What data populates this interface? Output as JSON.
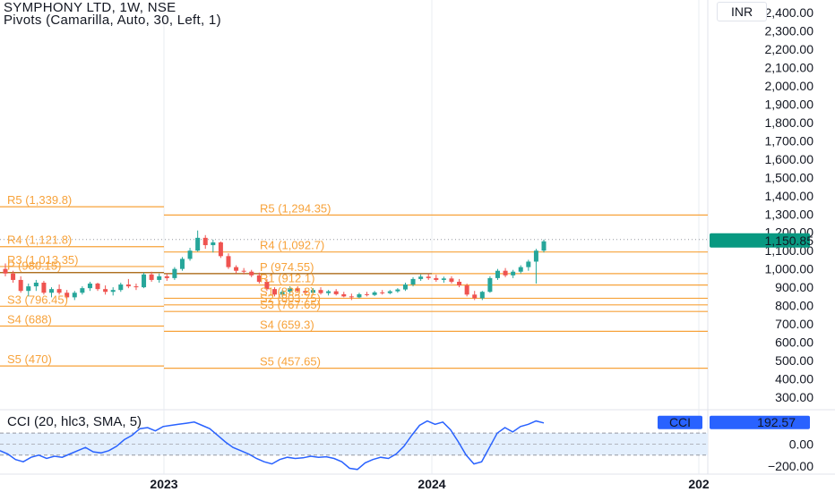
{
  "header": {
    "symbol": "SYMPHONY LTD, 1W, NSE",
    "indicator": "Pivots (Camarilla, Auto, 30, Left, 1)",
    "currency": "INR"
  },
  "colors": {
    "up": "#26a69a",
    "down": "#ef5350",
    "pivot": "#f7a23a",
    "pivot_dark": "#a35c00",
    "price_tag": "#089981",
    "cci_line": "#2962ff",
    "cci_band": "#e3effd",
    "cci_tag": "#2962ff",
    "grid": "#f0f3fa"
  },
  "chart_data": {
    "type": "candlestick",
    "title": "SYMPHONY LTD, 1W, NSE",
    "price_axis": {
      "ticks": [
        "2,400.00",
        "2,300.00",
        "2,200.00",
        "2,100.00",
        "2,000.00",
        "1,900.00",
        "1,800.00",
        "1,700.00",
        "1,600.00",
        "1,500.00",
        "1,400.00",
        "1,300.00",
        "1,200.00",
        "1,100.00",
        "1,000.00",
        "900.00",
        "800.00",
        "700.00",
        "600.00",
        "500.00",
        "400.00",
        "300.00"
      ],
      "ylim": [
        280,
        2430
      ]
    },
    "time_axis": {
      "ticks": [
        "2023",
        "2024",
        "202"
      ]
    },
    "last_price": {
      "value": 1150.85,
      "label": "1,150.85"
    },
    "candles": [
      {
        "o": 1000,
        "h": 1030,
        "l": 960,
        "c": 975
      },
      {
        "o": 975,
        "h": 990,
        "l": 925,
        "c": 940
      },
      {
        "o": 940,
        "h": 960,
        "l": 870,
        "c": 880
      },
      {
        "o": 880,
        "h": 920,
        "l": 850,
        "c": 905
      },
      {
        "o": 905,
        "h": 940,
        "l": 880,
        "c": 925
      },
      {
        "o": 925,
        "h": 935,
        "l": 860,
        "c": 870
      },
      {
        "o": 870,
        "h": 900,
        "l": 845,
        "c": 890
      },
      {
        "o": 890,
        "h": 915,
        "l": 860,
        "c": 870
      },
      {
        "o": 870,
        "h": 885,
        "l": 835,
        "c": 845
      },
      {
        "o": 845,
        "h": 880,
        "l": 830,
        "c": 870
      },
      {
        "o": 870,
        "h": 905,
        "l": 860,
        "c": 895
      },
      {
        "o": 895,
        "h": 930,
        "l": 880,
        "c": 920
      },
      {
        "o": 920,
        "h": 925,
        "l": 880,
        "c": 890
      },
      {
        "o": 890,
        "h": 910,
        "l": 860,
        "c": 875
      },
      {
        "o": 875,
        "h": 900,
        "l": 855,
        "c": 885
      },
      {
        "o": 885,
        "h": 925,
        "l": 875,
        "c": 915
      },
      {
        "o": 915,
        "h": 945,
        "l": 895,
        "c": 905
      },
      {
        "o": 905,
        "h": 920,
        "l": 885,
        "c": 900
      },
      {
        "o": 900,
        "h": 980,
        "l": 895,
        "c": 970
      },
      {
        "o": 970,
        "h": 985,
        "l": 930,
        "c": 940
      },
      {
        "o": 940,
        "h": 975,
        "l": 925,
        "c": 960
      },
      {
        "o": 960,
        "h": 975,
        "l": 935,
        "c": 950
      },
      {
        "o": 950,
        "h": 1010,
        "l": 940,
        "c": 1000
      },
      {
        "o": 1000,
        "h": 1065,
        "l": 990,
        "c": 1055
      },
      {
        "o": 1055,
        "h": 1115,
        "l": 1045,
        "c": 1100
      },
      {
        "o": 1100,
        "h": 1210,
        "l": 1095,
        "c": 1170
      },
      {
        "o": 1170,
        "h": 1185,
        "l": 1110,
        "c": 1130
      },
      {
        "o": 1130,
        "h": 1160,
        "l": 1090,
        "c": 1145
      },
      {
        "o": 1145,
        "h": 1150,
        "l": 1060,
        "c": 1070
      },
      {
        "o": 1070,
        "h": 1085,
        "l": 1000,
        "c": 1010
      },
      {
        "o": 1010,
        "h": 1020,
        "l": 975,
        "c": 990
      },
      {
        "o": 990,
        "h": 1005,
        "l": 970,
        "c": 985
      },
      {
        "o": 985,
        "h": 995,
        "l": 955,
        "c": 965
      },
      {
        "o": 965,
        "h": 980,
        "l": 920,
        "c": 930
      },
      {
        "o": 930,
        "h": 945,
        "l": 880,
        "c": 890
      },
      {
        "o": 890,
        "h": 900,
        "l": 850,
        "c": 860
      },
      {
        "o": 860,
        "h": 885,
        "l": 845,
        "c": 875
      },
      {
        "o": 875,
        "h": 905,
        "l": 865,
        "c": 895
      },
      {
        "o": 895,
        "h": 905,
        "l": 870,
        "c": 880
      },
      {
        "o": 880,
        "h": 895,
        "l": 860,
        "c": 870
      },
      {
        "o": 870,
        "h": 895,
        "l": 865,
        "c": 885
      },
      {
        "o": 885,
        "h": 900,
        "l": 860,
        "c": 868
      },
      {
        "o": 868,
        "h": 885,
        "l": 855,
        "c": 878
      },
      {
        "o": 878,
        "h": 890,
        "l": 855,
        "c": 862
      },
      {
        "o": 862,
        "h": 875,
        "l": 845,
        "c": 850
      },
      {
        "o": 850,
        "h": 865,
        "l": 830,
        "c": 845
      },
      {
        "o": 845,
        "h": 870,
        "l": 840,
        "c": 862
      },
      {
        "o": 862,
        "h": 875,
        "l": 850,
        "c": 858
      },
      {
        "o": 858,
        "h": 880,
        "l": 852,
        "c": 872
      },
      {
        "o": 872,
        "h": 885,
        "l": 860,
        "c": 868
      },
      {
        "o": 868,
        "h": 885,
        "l": 862,
        "c": 878
      },
      {
        "o": 878,
        "h": 895,
        "l": 870,
        "c": 888
      },
      {
        "o": 888,
        "h": 925,
        "l": 880,
        "c": 915
      },
      {
        "o": 915,
        "h": 955,
        "l": 905,
        "c": 945
      },
      {
        "o": 945,
        "h": 970,
        "l": 935,
        "c": 958
      },
      {
        "o": 958,
        "h": 975,
        "l": 940,
        "c": 950
      },
      {
        "o": 950,
        "h": 968,
        "l": 930,
        "c": 940
      },
      {
        "o": 940,
        "h": 958,
        "l": 925,
        "c": 948
      },
      {
        "o": 948,
        "h": 960,
        "l": 920,
        "c": 930
      },
      {
        "o": 930,
        "h": 945,
        "l": 900,
        "c": 910
      },
      {
        "o": 910,
        "h": 920,
        "l": 850,
        "c": 860
      },
      {
        "o": 860,
        "h": 880,
        "l": 830,
        "c": 840
      },
      {
        "o": 840,
        "h": 880,
        "l": 830,
        "c": 875
      },
      {
        "o": 875,
        "h": 960,
        "l": 870,
        "c": 950
      },
      {
        "o": 950,
        "h": 1000,
        "l": 940,
        "c": 990
      },
      {
        "o": 990,
        "h": 1005,
        "l": 955,
        "c": 965
      },
      {
        "o": 965,
        "h": 995,
        "l": 950,
        "c": 985
      },
      {
        "o": 985,
        "h": 1020,
        "l": 975,
        "c": 1010
      },
      {
        "o": 1010,
        "h": 1050,
        "l": 990,
        "c": 1040
      },
      {
        "o": 1040,
        "h": 1110,
        "l": 920,
        "c": 1100
      },
      {
        "o": 1100,
        "h": 1160,
        "l": 1090,
        "c": 1150.85
      }
    ],
    "pivot_periods": [
      {
        "levels": [
          {
            "name": "R5",
            "value": 1339.8,
            "label": "R5 (1,339.8)"
          },
          {
            "name": "R4",
            "value": 1121.8,
            "label": "R4 (1,121.8)"
          },
          {
            "name": "R3",
            "value": 1013.35,
            "label": "R3 (1,013.35)"
          },
          {
            "name": "P",
            "value": 980.15,
            "label": "P (980.15)"
          },
          {
            "name": "S3",
            "value": 796.45,
            "label": "S3 (796.45)"
          },
          {
            "name": "S4",
            "value": 688,
            "label": "S4 (688)"
          },
          {
            "name": "S5",
            "value": 470,
            "label": "S5 (470)"
          }
        ]
      },
      {
        "levels": [
          {
            "name": "R5",
            "value": 1294.35,
            "label": "R5 (1,294.35)"
          },
          {
            "name": "R4",
            "value": 1092.7,
            "label": "R4 (1,092.7)"
          },
          {
            "name": "P",
            "value": 974.55,
            "label": "P (974.55)"
          },
          {
            "name": "R1",
            "value": 912.1,
            "label": "R1 (912.1)"
          },
          {
            "name": "S1",
            "value": 839.8,
            "label": "S1 (839.8)"
          },
          {
            "name": "S2",
            "value": 803.75,
            "label": "S2 (803.75)"
          },
          {
            "name": "S3",
            "value": 767.65,
            "label": "S3 (767.65)"
          },
          {
            "name": "S4",
            "value": 659.3,
            "label": "S4 (659.3)"
          },
          {
            "name": "S5",
            "value": 457.65,
            "label": "S5 (457.65)"
          }
        ]
      }
    ],
    "cci": {
      "title": "CCI (20, hlc3, SMA, 5)",
      "tag": "CCI",
      "last_value": 192.57,
      "last_label": "192.57",
      "ticks": [
        "0.00",
        "−200.00"
      ],
      "band": [
        -100,
        100
      ],
      "values": [
        -60,
        -90,
        -140,
        -160,
        -120,
        -100,
        -130,
        -110,
        -120,
        -90,
        -60,
        -30,
        -70,
        -80,
        -60,
        -20,
        40,
        80,
        140,
        150,
        120,
        160,
        170,
        180,
        190,
        200,
        170,
        140,
        80,
        20,
        -30,
        -60,
        -90,
        -130,
        -160,
        -180,
        -140,
        -120,
        -130,
        -125,
        -110,
        -120,
        -115,
        -130,
        -160,
        -220,
        -230,
        -170,
        -140,
        -120,
        -130,
        -90,
        -20,
        80,
        170,
        210,
        180,
        200,
        130,
        20,
        -100,
        -180,
        -160,
        -30,
        100,
        150,
        110,
        160,
        180,
        210,
        192.57
      ],
      "ylim": [
        -240,
        280
      ]
    }
  }
}
